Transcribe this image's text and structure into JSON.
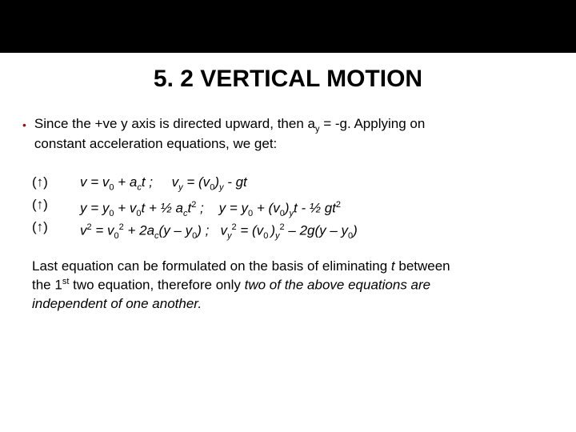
{
  "colors": {
    "topbar": "#000000",
    "background": "#ffffff",
    "bullet": "#8b1a1a",
    "text": "#000000"
  },
  "typography": {
    "title_fontsize": 30,
    "title_weight": "bold",
    "body_fontsize": 17,
    "sub_fontsize": 11,
    "font_family": "Arial"
  },
  "title": "5. 2 VERTICAL MOTION",
  "bullet": {
    "prefix_a": "Since the +ve y axis is directed upward, then a",
    "sub_y": "y",
    "suffix_a": " = -g. Applying on",
    "line_b": "constant acceleration equations, we get:"
  },
  "arrows": {
    "a": "(↑)",
    "b": "(↑)",
    "c": "(↑)"
  },
  "eq1": {
    "p1": "v = v",
    "s1": "0",
    "p2": " + a",
    "s2": "c",
    "p3": "t ;     v",
    "s3": "y",
    "p4": " = (v",
    "s4": "0",
    "p5": ")",
    "s5": "y",
    "p6": " - gt"
  },
  "eq2": {
    "p1": "y = y",
    "s1": "0",
    "p2": " + v",
    "s2": "0",
    "p3": "t + ½ a",
    "s3": "c",
    "p4": "t",
    "e1": "2",
    "p5": " ;    y = y",
    "s4": "0",
    "p6": " + (v",
    "s5": "0",
    "p7": ")",
    "s6": "y",
    "p8": "t - ½ gt",
    "e2": "2"
  },
  "eq3": {
    "p1": "v",
    "e1": "2",
    "p2": " = v",
    "s1": "0",
    "e2": "2",
    "p3": " + 2a",
    "s2": "c",
    "p4": "(y – y",
    "s3": "0",
    "p5": ") ;   v",
    "s4": "y",
    "e3": "2",
    "p6": " = (v",
    "s5": "0 ",
    "p7": ")",
    "s6": "y",
    "e4": "2",
    "p8": " – 2g(y – y",
    "s7": "0",
    "p9": ")"
  },
  "closing": {
    "a1": "Last equation can be formulated on the basis of eliminating ",
    "a_t": "t",
    "a2": " between",
    "b1": "the 1",
    "b_sup": "st",
    "b2": " two equation, therefore only ",
    "b_it": "two of the above equations are",
    "c_it": "independent of one another."
  }
}
